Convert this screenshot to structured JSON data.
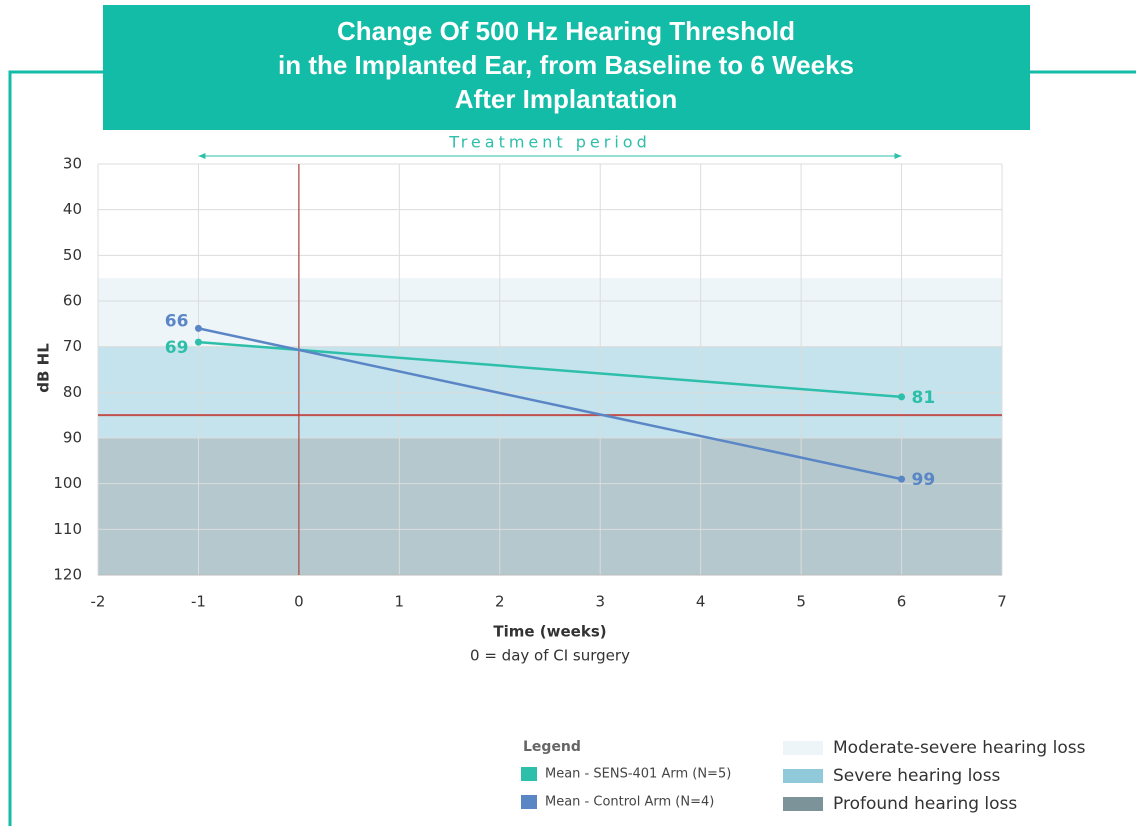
{
  "chart_data": {
    "type": "line",
    "title": [
      "Change Of 500 Hz Hearing Threshold",
      "in the Implanted Ear, from Baseline to 6 Weeks",
      "After Implantation"
    ],
    "x_label": "Time (weeks)",
    "x_note": "0 = day of CI surgery",
    "y_label": "dB HL",
    "annotation": {
      "text": "Treatment period",
      "x": [
        -1,
        6
      ]
    },
    "xlim": [
      -2,
      7
    ],
    "xticks": [
      -2,
      -1,
      0,
      1,
      2,
      3,
      4,
      5,
      6,
      7
    ],
    "ylim": [
      30,
      120
    ],
    "yticks": [
      30,
      40,
      50,
      60,
      70,
      80,
      90,
      100,
      110,
      120
    ],
    "y_inverted": true,
    "grid": true,
    "legend_title": "Legend",
    "series": [
      {
        "name": "Mean - SENS-401 Arm (N=5)",
        "color": "#2dbfa9",
        "x": [
          -1,
          6
        ],
        "values": [
          69,
          81
        ]
      },
      {
        "name": "Mean - Control Arm (N=4)",
        "color": "#5a86c6",
        "x": [
          -1,
          6
        ],
        "values": [
          66,
          99
        ]
      }
    ],
    "bands": [
      {
        "name": "Moderate-severe hearing loss",
        "from": 55,
        "to": 70,
        "color": "#eef5f9"
      },
      {
        "name": "Severe hearing loss",
        "from": 70,
        "to": 90,
        "color": "#c5e3ec"
      },
      {
        "name": "Profound hearing loss",
        "from": 90,
        "to": 120,
        "color": "#b4c8ce"
      }
    ],
    "hlines": [
      {
        "value": 85,
        "color": "#c0504d"
      }
    ],
    "vlines": [
      {
        "value": 0,
        "color": "#a9443f"
      }
    ]
  }
}
